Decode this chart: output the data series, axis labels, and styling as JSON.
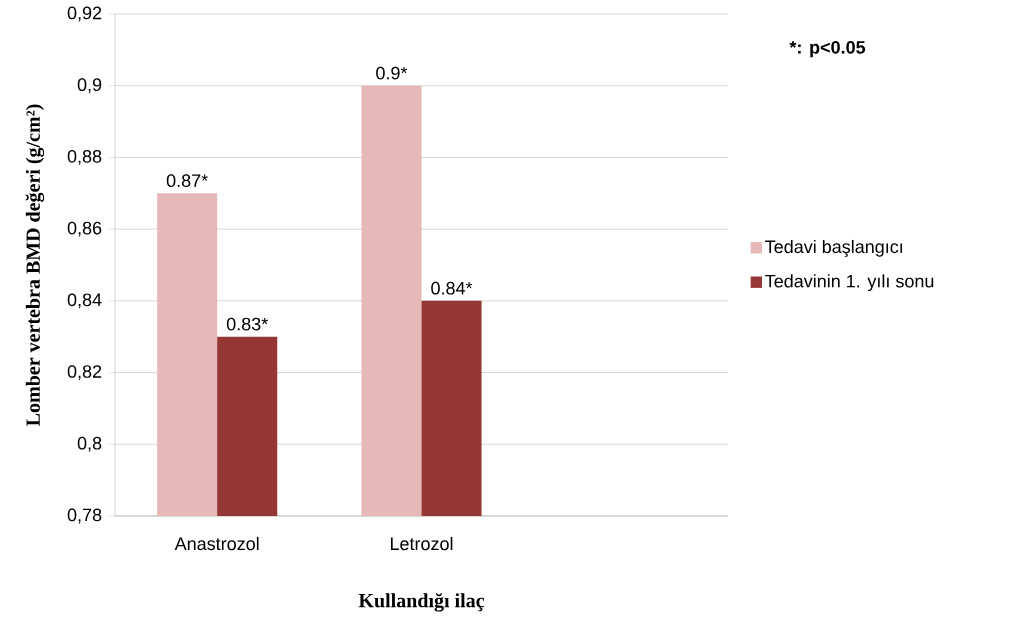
{
  "chart_data": {
    "type": "bar",
    "xlabel": "Kullandığı ilaç",
    "ylabel": "Lomber vertebra BMD değeri (g/cm²)",
    "categories": [
      "Anastrozol",
      "Letrozol",
      null
    ],
    "series": [
      {
        "name": "Tedavi başlangıcı",
        "color": "#e6b8b7",
        "values": [
          0.87,
          0.9,
          null
        ],
        "value_labels": [
          "0.87*",
          "0.9*",
          null
        ]
      },
      {
        "name": "Tedavinin 1. yılı sonu",
        "color": "#953735",
        "values": [
          0.83,
          0.84,
          null
        ],
        "value_labels": [
          "0.83*",
          "0.84*",
          null
        ]
      }
    ],
    "ylim": [
      0.78,
      0.92
    ],
    "yticks": [
      {
        "value": 0.78,
        "label": "0,78"
      },
      {
        "value": 0.8,
        "label": "0,8"
      },
      {
        "value": 0.82,
        "label": "0,82"
      },
      {
        "value": 0.84,
        "label": "0,84"
      },
      {
        "value": 0.86,
        "label": "0,86"
      },
      {
        "value": 0.88,
        "label": "0,88"
      },
      {
        "value": 0.9,
        "label": "0,9"
      },
      {
        "value": 0.92,
        "label": "0,92"
      }
    ],
    "grid": "y",
    "legend": "right",
    "annotations": [
      "*: p<0.05"
    ]
  }
}
